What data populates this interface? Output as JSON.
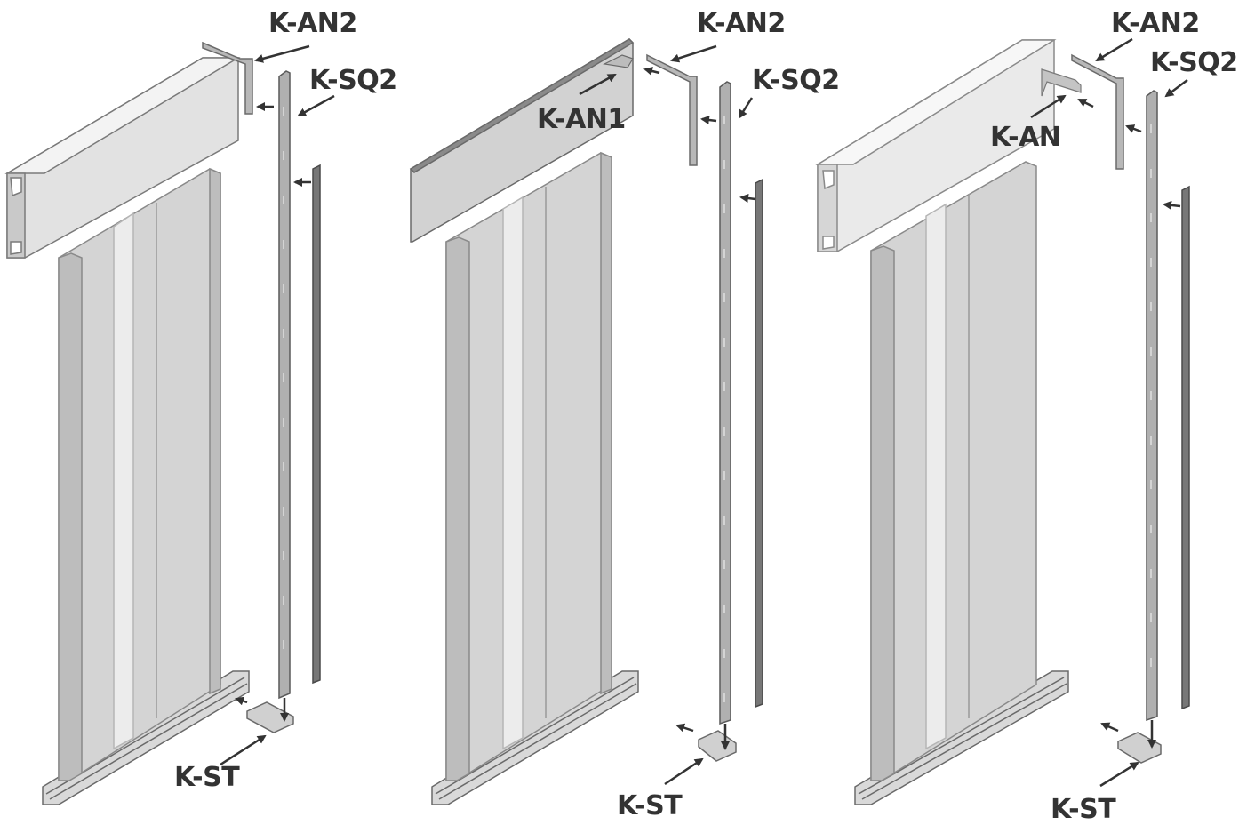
{
  "colors": {
    "background": "#ffffff",
    "ink": "#333333",
    "panel_light": "#d6d6d6",
    "panel_mid": "#c4c4c4",
    "panel_dark": "#a8a8a8",
    "highlight": "#ececec",
    "header_face": "#e8e8e8",
    "rail_dark": "#707070"
  },
  "assemblies": [
    {
      "labels": {
        "angle_bracket": "K-AN2",
        "post": "K-SQ2",
        "stand": "K-ST"
      }
    },
    {
      "labels": {
        "angle_bracket": "K-AN2",
        "post": "K-SQ2",
        "inner_bracket": "K-AN1",
        "stand": "K-ST"
      }
    },
    {
      "labels": {
        "angle_bracket": "K-AN2",
        "post": "K-SQ2",
        "inner_bracket": "K-AN",
        "stand": "K-ST"
      }
    }
  ]
}
